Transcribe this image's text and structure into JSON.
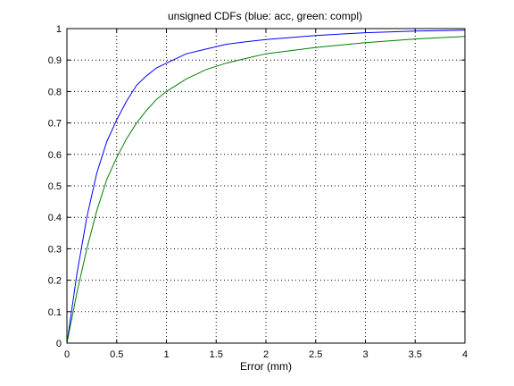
{
  "chart_data": {
    "type": "line",
    "title": "unsigned CDFs (blue: acc, green: compl)",
    "xlabel": "Error (mm)",
    "ylabel": "",
    "xlim": [
      0,
      4
    ],
    "ylim": [
      0,
      1
    ],
    "xticks": [
      0,
      0.5,
      1,
      1.5,
      2,
      2.5,
      3,
      3.5,
      4
    ],
    "xtick_labels": [
      "0",
      "0.5",
      "1",
      "1.5",
      "2",
      "2.5",
      "3",
      "3.5",
      "4"
    ],
    "yticks": [
      0,
      0.1,
      0.2,
      0.3,
      0.4,
      0.5,
      0.6,
      0.7,
      0.8,
      0.9,
      1
    ],
    "ytick_labels": [
      "0",
      "0.1",
      "0.2",
      "0.3",
      "0.4",
      "0.5",
      "0.6",
      "0.7",
      "0.8",
      "0.9",
      "1"
    ],
    "grid": true,
    "grid_style": "dotted",
    "series": [
      {
        "color": "#0000ff",
        "x": [
          0,
          0.05,
          0.1,
          0.2,
          0.3,
          0.4,
          0.5,
          0.6,
          0.7,
          0.8,
          0.9,
          1.0,
          1.2,
          1.4,
          1.6,
          1.8,
          2.0,
          2.5,
          3.0,
          3.5,
          4.0
        ],
        "y": [
          0,
          0.11,
          0.22,
          0.4,
          0.54,
          0.64,
          0.71,
          0.77,
          0.82,
          0.85,
          0.875,
          0.89,
          0.92,
          0.935,
          0.95,
          0.958,
          0.965,
          0.978,
          0.987,
          0.992,
          0.995
        ]
      },
      {
        "color": "#008000",
        "x": [
          0,
          0.05,
          0.1,
          0.2,
          0.3,
          0.4,
          0.5,
          0.6,
          0.7,
          0.8,
          0.9,
          1.0,
          1.2,
          1.4,
          1.6,
          1.8,
          2.0,
          2.5,
          3.0,
          3.5,
          4.0
        ],
        "y": [
          0,
          0.08,
          0.16,
          0.3,
          0.42,
          0.52,
          0.59,
          0.65,
          0.7,
          0.74,
          0.775,
          0.8,
          0.84,
          0.87,
          0.89,
          0.905,
          0.92,
          0.94,
          0.955,
          0.967,
          0.975
        ]
      }
    ]
  }
}
